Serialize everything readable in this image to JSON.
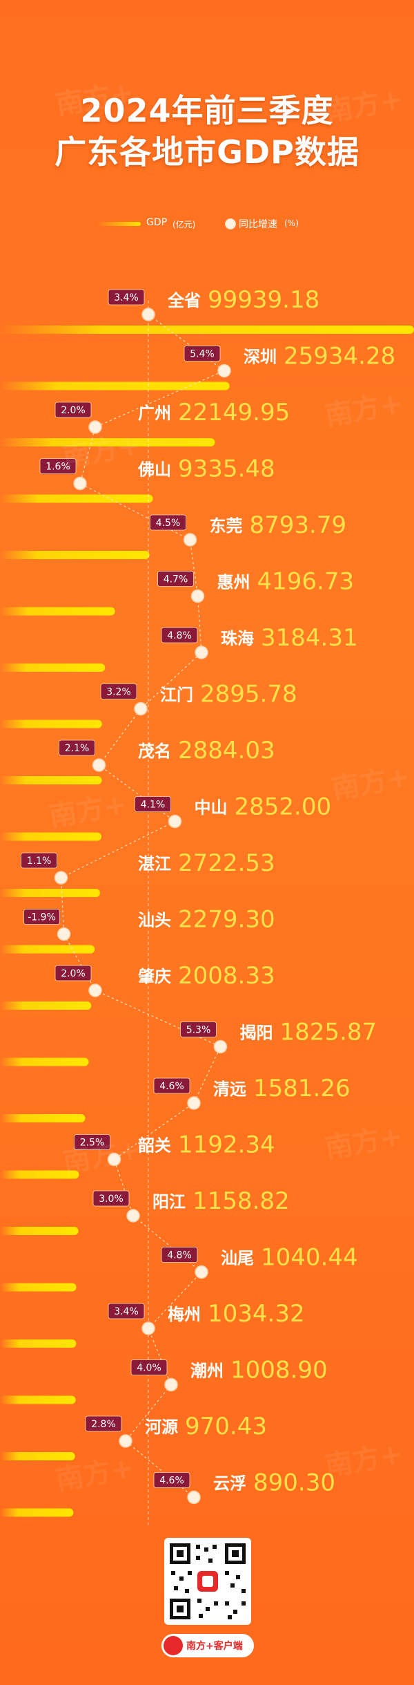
{
  "header": {
    "title_line1": "2024年前三季度",
    "title_line2": "广东各地市GDP数据"
  },
  "legend": {
    "gdp_label": "GDP",
    "gdp_unit": "(亿元)",
    "growth_label": "同比增速",
    "growth_unit": "(%)"
  },
  "watermark": "南方+",
  "footer": {
    "logo_text": "南方+客户端"
  },
  "colors": {
    "background": "#ff7a22",
    "bar": "#ffe600",
    "value_text": "#ffe24a",
    "badge": "#8b1a3a",
    "dot": "#fff1e0"
  },
  "chart_data": {
    "type": "bar",
    "orientation": "horizontal",
    "title": "2024年前三季度 广东各地市GDP数据",
    "categories": [
      "全省",
      "深圳",
      "广州",
      "佛山",
      "东莞",
      "惠州",
      "珠海",
      "江门",
      "茂名",
      "中山",
      "湛江",
      "汕头",
      "肇庆",
      "揭阳",
      "清远",
      "韶关",
      "阳江",
      "汕尾",
      "梅州",
      "潮州",
      "河源",
      "云浮"
    ],
    "series": [
      {
        "name": "GDP",
        "unit": "(亿元)",
        "values": [
          99939.18,
          25934.28,
          22149.95,
          9335.48,
          8793.79,
          4196.73,
          3184.31,
          2895.78,
          2884.03,
          2852.0,
          2722.53,
          2279.3,
          2008.33,
          1825.87,
          1581.26,
          1192.34,
          1158.82,
          1040.44,
          1034.32,
          1008.9,
          970.43,
          890.3
        ]
      },
      {
        "name": "同比增速",
        "unit": "(%)",
        "values": [
          3.4,
          5.4,
          2.0,
          1.6,
          4.5,
          4.7,
          4.8,
          3.2,
          2.1,
          4.1,
          1.1,
          -1.9,
          2.0,
          5.3,
          4.6,
          2.5,
          3.0,
          4.8,
          3.4,
          4.0,
          2.8,
          4.6
        ]
      }
    ],
    "value_labels": [
      "99939.18",
      "25934.28",
      "22149.95",
      "9335.48",
      "8793.79",
      "4196.73",
      "3184.31",
      "2895.78",
      "2884.03",
      "2852.00",
      "2722.53",
      "2279.30",
      "2008.33",
      "1825.87",
      "1581.26",
      "1192.34",
      "1158.82",
      "1040.44",
      "1034.32",
      "1008.90",
      "970.43",
      "890.30"
    ],
    "growth_labels": [
      "3.4%",
      "5.4%",
      "2.0%",
      "1.6%",
      "4.5%",
      "4.7%",
      "4.8%",
      "3.2%",
      "2.1%",
      "4.1%",
      "1.1%",
      "-1.9%",
      "2.0%",
      "5.3%",
      "4.6%",
      "2.5%",
      "3.0%",
      "4.8%",
      "3.4%",
      "4.0%",
      "2.8%",
      "4.6%"
    ],
    "growth_reference": 3.4,
    "grid": false,
    "legend_position": "top"
  }
}
